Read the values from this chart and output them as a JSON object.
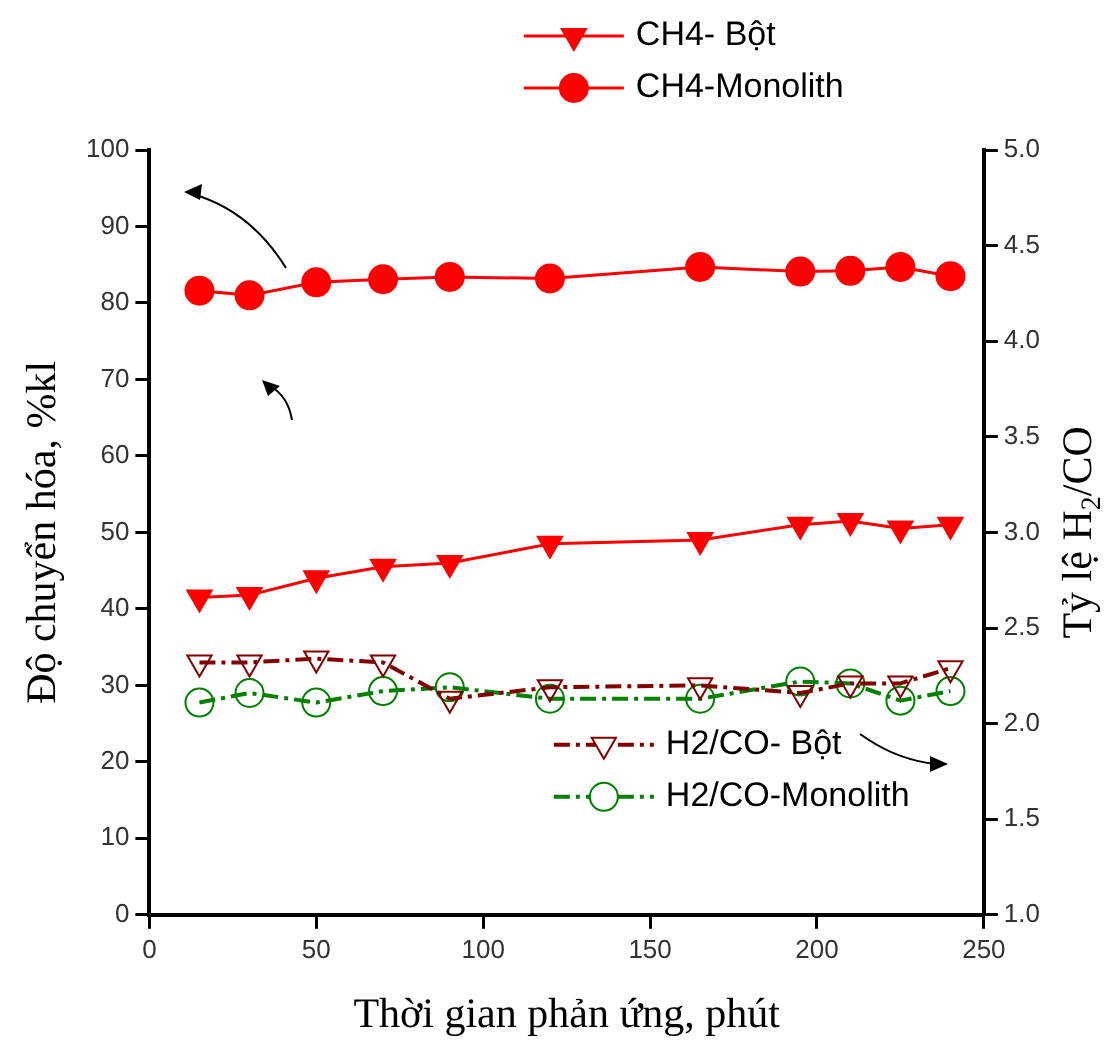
{
  "chart_data": {
    "type": "line",
    "xlabel": "Thời gian phản ứng, phút",
    "ylabel": "Độ chuyển hóa, %kl",
    "y2label": "Tỷ lệ H$_{2}$/CO",
    "x": [
      15,
      30,
      50,
      70,
      90,
      120,
      165,
      195,
      210,
      225,
      240
    ],
    "xlim": [
      0,
      250
    ],
    "xticks": [
      0,
      50,
      100,
      150,
      200,
      250
    ],
    "ylim": [
      0,
      100
    ],
    "yticks": [
      0,
      10,
      20,
      30,
      40,
      50,
      60,
      70,
      80,
      90,
      100
    ],
    "y2lim": [
      1,
      5
    ],
    "y2ticks": [
      {
        "value": 1,
        "label": "1.0"
      },
      {
        "value": 1.5,
        "label": "1.5"
      },
      {
        "value": 2,
        "label": "2.0"
      },
      {
        "value": 2.5,
        "label": "2.5"
      },
      {
        "value": 3,
        "label": "3.0"
      },
      {
        "value": 3.5,
        "label": "3.5"
      },
      {
        "value": 4,
        "label": "4.0"
      },
      {
        "value": 4.5,
        "label": "4.5"
      },
      {
        "value": 5,
        "label": "5.0"
      }
    ],
    "grid": false,
    "legend": "top right",
    "series": [
      {
        "name": "CH4- Bột",
        "color": "#ff0000",
        "marker": "triangle",
        "line_style": "solid",
        "values": [
          41.5,
          41.8,
          44,
          45.5,
          46,
          48.5,
          49,
          51,
          51.5,
          50.5,
          51
        ]
      },
      {
        "name": "CH4-Monolith",
        "color": "#ff0000",
        "marker": "circle",
        "line_style": "solid",
        "values": [
          81.6,
          81,
          82.7,
          83.1,
          83.4,
          83.2,
          84.7,
          84.1,
          84.2,
          84.7,
          83.5
        ]
      },
      {
        "name": "H2/CO- Bột",
        "color": "#800000",
        "marker": "triangle",
        "line_style": "dashed",
        "axis": "y2",
        "values": [
          2.32,
          2.32,
          2.34,
          2.32,
          2.13,
          2.19,
          2.2,
          2.16,
          2.21,
          2.21,
          2.29
        ]
      },
      {
        "name": "H2/CO-Monolith",
        "color": "#008000",
        "marker": "circle",
        "line_style": "dashed",
        "axis": "y2",
        "values": [
          2.11,
          2.16,
          2.11,
          2.17,
          2.19,
          2.13,
          2.13,
          2.22,
          2.21,
          2.12,
          2.17
        ]
      }
    ]
  }
}
